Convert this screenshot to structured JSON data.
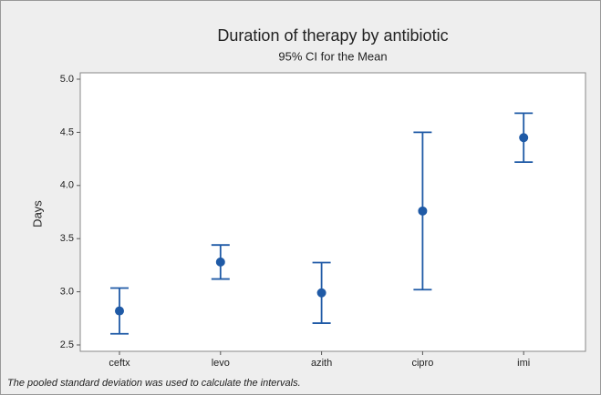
{
  "chart_data": {
    "type": "interval",
    "title": "Duration of therapy by antibiotic",
    "subtitle": "95% CI for the Mean",
    "y_label": "Days",
    "footnote": "The pooled standard deviation was used to calculate the intervals.",
    "categories": [
      "ceftx",
      "levo",
      "azith",
      "cipro",
      "imi"
    ],
    "values": [
      2.82,
      3.28,
      2.99,
      3.76,
      4.45
    ],
    "errors": [
      0.215,
      0.16,
      0.285,
      0.74,
      0.23
    ],
    "color": "#1f5aa6",
    "ylim": [
      2.44,
      5.06
    ],
    "yticks": [
      {
        "value": 2.5,
        "label": "2.5"
      },
      {
        "value": 3.0,
        "label": "3.0"
      },
      {
        "value": 3.5,
        "label": "3.5"
      },
      {
        "value": 4.0,
        "label": "4.0"
      },
      {
        "value": 4.5,
        "label": "4.5"
      },
      {
        "value": 5.0,
        "label": "5.0"
      }
    ]
  }
}
